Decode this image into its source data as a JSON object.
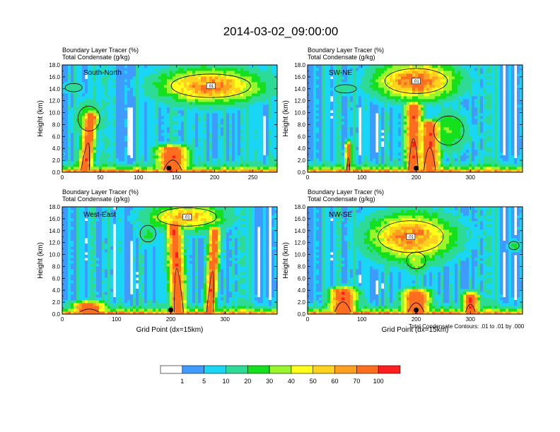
{
  "chart_data": {
    "title": "2014-03-02_09:00:00",
    "type": "heatmap",
    "header_line_1": "Boundary Layer Tracer    (%)",
    "header_line_2": "Total Condensate    (g/kg)",
    "ylabel": "Height (km)",
    "xlabel": "Grid Point (dx=15km)",
    "ylim": [
      0,
      18
    ],
    "y_ticks": [
      "0.0",
      "2.0",
      "4.0",
      "6.0",
      "8.0",
      "10.0",
      "12.0",
      "14.0",
      "16.0",
      "18.0"
    ],
    "contour_note": "Total Condensate Contours: .01 to .01 by .000",
    "contour_level_label": ".01",
    "legend": {
      "levels": [
        "1",
        "5",
        "10",
        "20",
        "30",
        "40",
        "50",
        "60",
        "70",
        "100"
      ],
      "colors": [
        "#ffffff",
        "#3f9bff",
        "#19d6f5",
        "#2dda96",
        "#14e01e",
        "#9bf52d",
        "#ffff19",
        "#ffd21e",
        "#ffa021",
        "#ff6e1e",
        "#ff1e1e"
      ]
    },
    "panels": [
      {
        "name": "South-North",
        "xlim": [
          0,
          282
        ],
        "x_ticks": [
          0,
          50,
          100,
          150,
          200,
          250
        ],
        "storm_center_x": 140,
        "cores": [
          {
            "x": 30,
            "top": 9.5,
            "halfwidth": 9,
            "lean": 8
          },
          {
            "x": 145,
            "top": 3.8,
            "halfwidth": 20,
            "lean": 0
          }
        ],
        "anvils": [
          {
            "x": 195,
            "z": 14.5,
            "halfwidth": 65,
            "thickness": 2.8,
            "peak": 72
          },
          {
            "x": 35,
            "z": 9.0,
            "halfwidth": 18,
            "thickness": 3.0,
            "peak": 35
          },
          {
            "x": 15,
            "z": 14.2,
            "halfwidth": 14,
            "thickness": 1.0,
            "peak": 18
          }
        ]
      },
      {
        "name": "SW-NE",
        "xlim": [
          0,
          396
        ],
        "x_ticks": [
          0,
          100,
          200,
          300
        ],
        "storm_center_x": 200,
        "cores": [
          {
            "x": 195,
            "top": 11,
            "halfwidth": 15,
            "lean": 0
          },
          {
            "x": 225,
            "top": 8,
            "halfwidth": 18,
            "lean": 0
          },
          {
            "x": 75,
            "top": 4.5,
            "halfwidth": 5,
            "lean": 0
          }
        ],
        "anvils": [
          {
            "x": 200,
            "z": 15.3,
            "halfwidth": 72,
            "thickness": 3.0,
            "peak": 78
          },
          {
            "x": 260,
            "z": 7.0,
            "halfwidth": 35,
            "thickness": 3.5,
            "peak": 32
          },
          {
            "x": 70,
            "z": 14.0,
            "halfwidth": 25,
            "thickness": 1.0,
            "peak": 15
          }
        ]
      },
      {
        "name": "West-East",
        "xlim": [
          0,
          396
        ],
        "x_ticks": [
          0,
          100,
          200,
          300
        ],
        "storm_center_x": 200,
        "cores": [
          {
            "x": 215,
            "top": 15,
            "halfwidth": 14,
            "lean": -8
          },
          {
            "x": 272,
            "top": 14,
            "halfwidth": 10,
            "lean": 10
          },
          {
            "x": 50,
            "top": 1.4,
            "halfwidth": 30,
            "lean": 0
          }
        ],
        "anvils": [
          {
            "x": 230,
            "z": 16.3,
            "halfwidth": 68,
            "thickness": 2.2,
            "peak": 62
          },
          {
            "x": 158,
            "z": 13.5,
            "halfwidth": 18,
            "thickness": 2.0,
            "peak": 22
          }
        ]
      },
      {
        "name": "NW-SE",
        "xlim": [
          0,
          396
        ],
        "x_ticks": [
          0,
          100,
          200,
          300
        ],
        "storm_center_x": 200,
        "cores": [
          {
            "x": 65,
            "top": 3.8,
            "halfwidth": 25,
            "lean": 0
          },
          {
            "x": 200,
            "top": 3.5,
            "halfwidth": 25,
            "lean": 0
          },
          {
            "x": 300,
            "top": 3.0,
            "halfwidth": 15,
            "lean": 0
          }
        ],
        "anvils": [
          {
            "x": 190,
            "z": 13.0,
            "halfwidth": 75,
            "thickness": 3.8,
            "peak": 72
          },
          {
            "x": 200,
            "z": 9.0,
            "halfwidth": 22,
            "thickness": 2.0,
            "peak": 40
          },
          {
            "x": 380,
            "z": 11.5,
            "halfwidth": 12,
            "thickness": 1.0,
            "peak": 22
          }
        ]
      }
    ]
  }
}
